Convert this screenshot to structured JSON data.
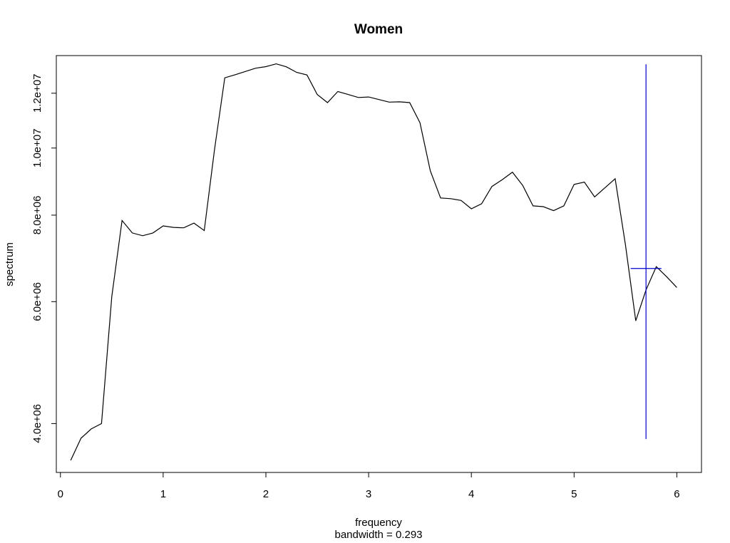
{
  "chart_data": {
    "type": "line",
    "title": "Women",
    "xlabel": "frequency",
    "xsublabel": "bandwidth = 0.293",
    "ylabel": "spectrum",
    "y_scale": "log",
    "xlim": [
      -0.04,
      6.24
    ],
    "ylim": [
      3400000,
      13600000
    ],
    "x_ticks": [
      0,
      1,
      2,
      3,
      4,
      5,
      6
    ],
    "x_tick_labels": [
      "0",
      "1",
      "2",
      "3",
      "4",
      "5",
      "6"
    ],
    "y_ticks": [
      4000000,
      6000000,
      8000000,
      10000000,
      12000000
    ],
    "y_tick_labels": [
      "4.0e+06",
      "6.0e+06",
      "8.0e+06",
      "1.0e+07",
      "1.2e+07"
    ],
    "grid": false,
    "series": [
      {
        "color": "#000000",
        "x": [
          0.1,
          0.2,
          0.3,
          0.4,
          0.5,
          0.6,
          0.7,
          0.8,
          0.9,
          1.0,
          1.1,
          1.2,
          1.3,
          1.4,
          1.5,
          1.6,
          1.7,
          1.8,
          1.9,
          2.0,
          2.1,
          2.2,
          2.3,
          2.4,
          2.5,
          2.6,
          2.7,
          2.8,
          2.9,
          3.0,
          3.1,
          3.2,
          3.3,
          3.4,
          3.5,
          3.6,
          3.7,
          3.8,
          3.9,
          4.0,
          4.1,
          4.2,
          4.3,
          4.4,
          4.5,
          4.6,
          4.7,
          4.8,
          4.9,
          5.0,
          5.1,
          5.2,
          5.3,
          5.4,
          5.5,
          5.6,
          5.7,
          5.8,
          5.9,
          6.0
        ],
        "y": [
          3540000,
          3810000,
          3930000,
          4000000,
          6100000,
          7860000,
          7540000,
          7470000,
          7540000,
          7720000,
          7680000,
          7670000,
          7790000,
          7600000,
          9950000,
          12630000,
          12760000,
          12900000,
          13040000,
          13110000,
          13230000,
          13100000,
          12860000,
          12750000,
          11950000,
          11630000,
          12070000,
          11950000,
          11830000,
          11850000,
          11750000,
          11650000,
          11660000,
          11630000,
          10880000,
          9270000,
          8470000,
          8450000,
          8400000,
          8170000,
          8310000,
          8800000,
          9000000,
          9230000,
          8830000,
          8250000,
          8230000,
          8120000,
          8250000,
          8860000,
          8930000,
          8500000,
          8760000,
          9030000,
          7240000,
          5630000,
          6240000,
          6740000,
          6520000,
          6290000
        ]
      }
    ],
    "annotations": {
      "ci_bar_color": "#0000CD",
      "ci_bar_x": 5.7,
      "ci_bar_y_low": 3800000,
      "ci_bar_y_high": 13210000,
      "ci_bar_y_center": 6700000,
      "bandwidth_x_low": 5.55,
      "bandwidth_x_high": 5.85
    }
  }
}
